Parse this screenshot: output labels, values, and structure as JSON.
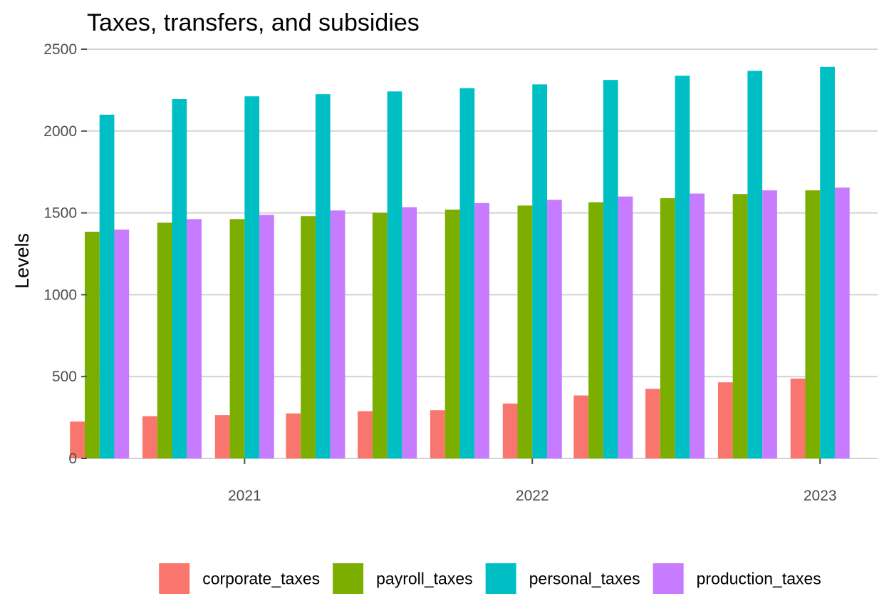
{
  "chart_data": {
    "type": "bar",
    "title": "Taxes, transfers, and subsidies",
    "xlabel": "",
    "ylabel": "Levels",
    "ylim": [
      0,
      2500
    ],
    "yticks": [
      0,
      500,
      1000,
      1500,
      2000,
      2500
    ],
    "x_range": [
      "2020-06-15",
      "2023-03-15"
    ],
    "xticks": [
      {
        "label": "2021",
        "date": "2021-01-01"
      },
      {
        "label": "2022",
        "date": "2022-01-01"
      },
      {
        "label": "2023",
        "date": "2023-01-01"
      }
    ],
    "x": [
      "2020-07-01",
      "2020-10-01",
      "2021-01-01",
      "2021-04-01",
      "2021-07-01",
      "2021-10-01",
      "2022-01-01",
      "2022-04-01",
      "2022-07-01",
      "2022-10-01",
      "2023-01-01"
    ],
    "grid": "horizontal",
    "legend_position": "bottom",
    "series": [
      {
        "name": "corporate_taxes",
        "color": "#F8766D",
        "values": [
          225,
          258,
          265,
          275,
          288,
          295,
          335,
          385,
          425,
          465,
          488
        ]
      },
      {
        "name": "payroll_taxes",
        "color": "#7CAE00",
        "values": [
          1385,
          1440,
          1462,
          1480,
          1500,
          1520,
          1545,
          1565,
          1590,
          1615,
          1638
        ]
      },
      {
        "name": "personal_taxes",
        "color": "#00BFC4",
        "values": [
          2100,
          2195,
          2212,
          2225,
          2242,
          2262,
          2285,
          2312,
          2338,
          2368,
          2392
        ]
      },
      {
        "name": "production_taxes",
        "color": "#C77CFF",
        "values": [
          1398,
          1462,
          1488,
          1515,
          1535,
          1560,
          1580,
          1600,
          1618,
          1638,
          1655
        ]
      }
    ]
  }
}
